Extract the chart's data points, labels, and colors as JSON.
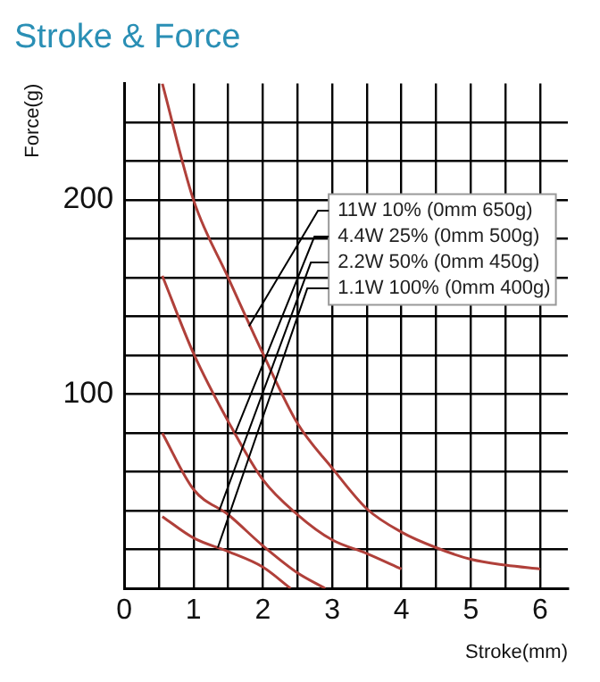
{
  "chart_data": {
    "type": "line",
    "title": "Stroke & Force",
    "xlabel": "Stroke(mm)",
    "ylabel": "Force(g)",
    "xlim": [
      0,
      6.4
    ],
    "ylim": [
      0,
      260
    ],
    "xticks": [
      0,
      {
        "value": 0.5,
        "label": null
      },
      1,
      {
        "value": 1.5,
        "label": null
      },
      2,
      {
        "value": 2.5,
        "label": null
      },
      3,
      {
        "value": 3.5,
        "label": null
      },
      4,
      {
        "value": 4.5,
        "label": null
      },
      5,
      {
        "value": 5.5,
        "label": null
      },
      6
    ],
    "yticks": [
      {
        "value": 20,
        "label": null
      },
      {
        "value": 40,
        "label": null
      },
      {
        "value": 60,
        "label": null
      },
      {
        "value": 80,
        "label": null
      },
      100,
      {
        "value": 120,
        "label": null
      },
      {
        "value": 140,
        "label": null
      },
      {
        "value": 160,
        "label": null
      },
      {
        "value": 180,
        "label": null
      },
      200,
      {
        "value": 220,
        "label": null
      },
      {
        "value": 240,
        "label": null
      }
    ],
    "grid": true,
    "marker": "none",
    "series": [
      {
        "color": "#b0403a",
        "x": [
          0.55,
          1,
          1.5,
          2,
          2.5,
          3,
          3.5,
          4,
          4.5,
          5,
          5.5,
          6
        ],
        "values": [
          260,
          200,
          160,
          121,
          85,
          62,
          41,
          29,
          21,
          15,
          12,
          10
        ]
      },
      {
        "color": "#b0403a",
        "x": [
          0.55,
          1,
          1.5,
          2,
          2.5,
          3,
          3.5,
          4
        ],
        "values": [
          161,
          121,
          86,
          56,
          38,
          25,
          18,
          10
        ]
      },
      {
        "color": "#b0403a",
        "x": [
          0.55,
          1,
          1.5,
          2,
          2.5,
          2.9
        ],
        "values": [
          80,
          51,
          38,
          22,
          8,
          0
        ]
      },
      {
        "color": "#b0403a",
        "x": [
          0.55,
          1,
          1.5,
          2,
          2.4
        ],
        "values": [
          37,
          26,
          19,
          11,
          0
        ]
      }
    ],
    "annotations": [
      {
        "text": "11W 10% (0mm 650g)",
        "x": 1.8,
        "y": 135
      },
      {
        "text": "4.4W 25% (0mm 500g)",
        "x": 1.6,
        "y": 80
      },
      {
        "text": "2.2W 50% (0mm 450g)",
        "x": 1.37,
        "y": 40
      },
      {
        "text": "1.1W 100% (0mm 400g)",
        "x": 1.35,
        "y": 21
      }
    ]
  }
}
